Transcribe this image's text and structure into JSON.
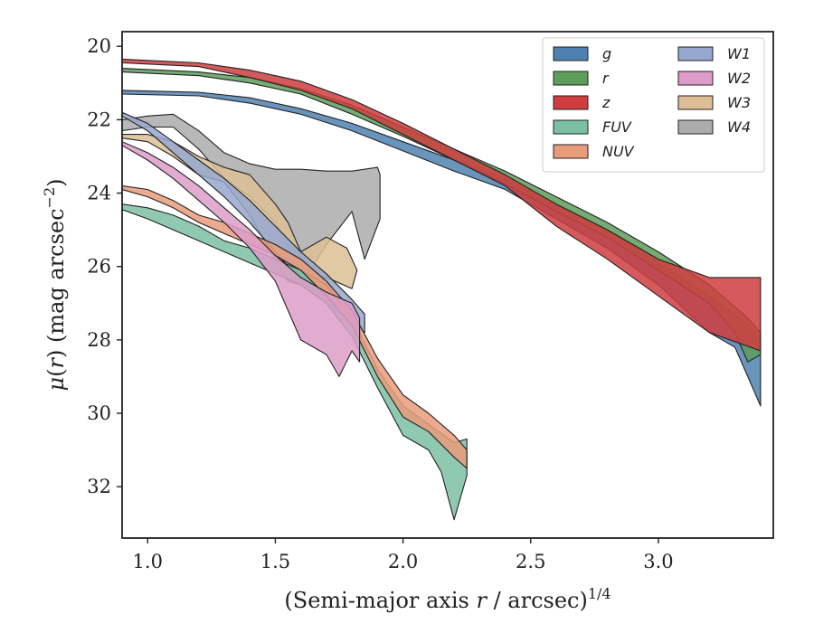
{
  "chart_data": {
    "type": "area",
    "title": "",
    "xlabel_main": "(Semi-major axis ",
    "xlabel_var": "r",
    "xlabel_tail": " / arcsec)",
    "xlabel_sup": "1/4",
    "ylabel_mu": "μ",
    "ylabel_open": "(",
    "ylabel_var": "r",
    "ylabel_tail": ") (mag arcsec",
    "ylabel_sup": "−2",
    "ylabel_close": ")",
    "xlim": [
      0.9,
      3.45
    ],
    "ylim": [
      33.4,
      19.6
    ],
    "y_inverted": true,
    "x_ticks": [
      1.0,
      1.5,
      2.0,
      2.5,
      3.0
    ],
    "x_tick_labels": [
      "1.0",
      "1.5",
      "2.0",
      "2.5",
      "3.0"
    ],
    "y_ticks": [
      20,
      22,
      24,
      26,
      28,
      30,
      32
    ],
    "y_tick_labels": [
      "20",
      "22",
      "24",
      "26",
      "28",
      "30",
      "32"
    ],
    "grid": false,
    "legend_position": "top-right",
    "legend_columns": 2,
    "series": [
      {
        "name": "W4",
        "color": "#acacac",
        "upper": [
          [
            0.9,
            22.0
          ],
          [
            1.0,
            21.9
          ],
          [
            1.1,
            21.85
          ],
          [
            1.2,
            22.3
          ],
          [
            1.3,
            22.9
          ],
          [
            1.4,
            23.2
          ],
          [
            1.5,
            23.35
          ],
          [
            1.6,
            23.35
          ],
          [
            1.7,
            23.4
          ],
          [
            1.8,
            23.4
          ],
          [
            1.9,
            23.3
          ],
          [
            1.91,
            23.5
          ]
        ],
        "lower": [
          [
            0.9,
            22.3
          ],
          [
            1.0,
            22.2
          ],
          [
            1.1,
            22.2
          ],
          [
            1.2,
            22.8
          ],
          [
            1.3,
            23.6
          ],
          [
            1.4,
            24.1
          ],
          [
            1.5,
            24.8
          ],
          [
            1.55,
            25.5
          ],
          [
            1.6,
            26.5
          ],
          [
            1.7,
            25.4
          ],
          [
            1.8,
            24.5
          ],
          [
            1.85,
            25.8
          ],
          [
            1.91,
            24.7
          ]
        ]
      },
      {
        "name": "W3",
        "color": "#dcbf97",
        "upper": [
          [
            0.9,
            22.4
          ],
          [
            1.0,
            22.4
          ],
          [
            1.1,
            22.6
          ],
          [
            1.2,
            23.0
          ],
          [
            1.3,
            23.3
          ],
          [
            1.4,
            23.5
          ],
          [
            1.5,
            24.3
          ],
          [
            1.55,
            24.8
          ],
          [
            1.6,
            25.6
          ],
          [
            1.7,
            25.2
          ],
          [
            1.78,
            25.5
          ],
          [
            1.82,
            26.1
          ]
        ],
        "lower": [
          [
            0.9,
            22.5
          ],
          [
            1.0,
            22.6
          ],
          [
            1.1,
            23.0
          ],
          [
            1.2,
            23.5
          ],
          [
            1.3,
            23.7
          ],
          [
            1.4,
            24.6
          ],
          [
            1.5,
            25.8
          ],
          [
            1.55,
            26.4
          ],
          [
            1.6,
            26.5
          ],
          [
            1.7,
            26.3
          ],
          [
            1.8,
            26.6
          ]
        ]
      },
      {
        "name": "W1",
        "color": "#97a8cf",
        "upper": [
          [
            0.9,
            21.8
          ],
          [
            1.0,
            22.1
          ],
          [
            1.1,
            22.6
          ],
          [
            1.2,
            23.1
          ],
          [
            1.3,
            23.6
          ],
          [
            1.4,
            24.2
          ],
          [
            1.5,
            24.9
          ],
          [
            1.6,
            25.6
          ],
          [
            1.7,
            26.2
          ],
          [
            1.8,
            26.9
          ],
          [
            1.85,
            27.3
          ]
        ],
        "lower": [
          [
            0.9,
            21.9
          ],
          [
            1.0,
            22.3
          ],
          [
            1.1,
            22.9
          ],
          [
            1.2,
            23.5
          ],
          [
            1.3,
            24.1
          ],
          [
            1.4,
            24.8
          ],
          [
            1.5,
            25.6
          ],
          [
            1.6,
            26.4
          ],
          [
            1.7,
            27.0
          ],
          [
            1.8,
            27.5
          ],
          [
            1.85,
            27.8
          ]
        ]
      },
      {
        "name": "FUV",
        "color": "#7bbfa5",
        "upper": [
          [
            0.9,
            24.3
          ],
          [
            1.0,
            24.4
          ],
          [
            1.1,
            24.6
          ],
          [
            1.2,
            24.9
          ],
          [
            1.3,
            25.3
          ],
          [
            1.4,
            25.5
          ],
          [
            1.5,
            25.8
          ],
          [
            1.6,
            26.1
          ],
          [
            1.7,
            26.5
          ],
          [
            1.8,
            27.4
          ],
          [
            1.9,
            28.8
          ],
          [
            2.0,
            29.8
          ],
          [
            2.1,
            30.3
          ],
          [
            2.2,
            30.8
          ],
          [
            2.25,
            30.7
          ]
        ],
        "lower": [
          [
            0.9,
            24.45
          ],
          [
            1.0,
            24.7
          ],
          [
            1.1,
            25.0
          ],
          [
            1.2,
            25.3
          ],
          [
            1.3,
            25.6
          ],
          [
            1.4,
            25.9
          ],
          [
            1.5,
            26.2
          ],
          [
            1.6,
            26.5
          ],
          [
            1.7,
            27.0
          ],
          [
            1.8,
            27.9
          ],
          [
            1.9,
            29.3
          ],
          [
            2.0,
            30.6
          ],
          [
            2.1,
            31.0
          ],
          [
            2.15,
            31.6
          ],
          [
            2.2,
            32.9
          ],
          [
            2.25,
            31.7
          ]
        ]
      },
      {
        "name": "NUV",
        "color": "#e99c7a",
        "upper": [
          [
            0.9,
            23.8
          ],
          [
            1.0,
            23.9
          ],
          [
            1.1,
            24.2
          ],
          [
            1.2,
            24.6
          ],
          [
            1.3,
            24.8
          ],
          [
            1.4,
            25.1
          ],
          [
            1.5,
            25.4
          ],
          [
            1.6,
            25.8
          ],
          [
            1.7,
            26.4
          ],
          [
            1.8,
            27.2
          ],
          [
            1.9,
            28.5
          ],
          [
            2.0,
            29.5
          ],
          [
            2.1,
            30.0
          ],
          [
            2.2,
            30.6
          ],
          [
            2.25,
            31.0
          ]
        ],
        "lower": [
          [
            0.9,
            23.9
          ],
          [
            1.0,
            24.1
          ],
          [
            1.1,
            24.4
          ],
          [
            1.2,
            24.8
          ],
          [
            1.3,
            25.1
          ],
          [
            1.4,
            25.4
          ],
          [
            1.5,
            25.7
          ],
          [
            1.6,
            26.1
          ],
          [
            1.7,
            26.8
          ],
          [
            1.8,
            27.6
          ],
          [
            1.9,
            29.0
          ],
          [
            2.0,
            30.1
          ],
          [
            2.1,
            30.5
          ],
          [
            2.2,
            31.2
          ],
          [
            2.25,
            31.5
          ]
        ]
      },
      {
        "name": "W2",
        "color": "#dd9dc8",
        "upper": [
          [
            0.9,
            22.6
          ],
          [
            1.0,
            22.9
          ],
          [
            1.1,
            23.3
          ],
          [
            1.2,
            23.8
          ],
          [
            1.3,
            24.4
          ],
          [
            1.4,
            25.0
          ],
          [
            1.5,
            25.7
          ],
          [
            1.6,
            26.3
          ],
          [
            1.7,
            26.7
          ],
          [
            1.8,
            27.0
          ],
          [
            1.83,
            27.4
          ]
        ],
        "lower": [
          [
            0.9,
            22.7
          ],
          [
            1.0,
            23.1
          ],
          [
            1.1,
            23.6
          ],
          [
            1.2,
            24.2
          ],
          [
            1.3,
            24.8
          ],
          [
            1.4,
            25.5
          ],
          [
            1.5,
            26.4
          ],
          [
            1.55,
            27.2
          ],
          [
            1.6,
            28.0
          ],
          [
            1.7,
            28.4
          ],
          [
            1.75,
            29.0
          ],
          [
            1.8,
            28.3
          ],
          [
            1.83,
            28.6
          ]
        ]
      },
      {
        "name": "g",
        "color": "#4f81b0",
        "upper": [
          [
            0.9,
            21.2
          ],
          [
            1.2,
            21.25
          ],
          [
            1.4,
            21.4
          ],
          [
            1.6,
            21.7
          ],
          [
            1.8,
            22.1
          ],
          [
            2.0,
            22.6
          ],
          [
            2.2,
            23.1
          ],
          [
            2.4,
            23.6
          ],
          [
            2.6,
            24.3
          ],
          [
            2.8,
            25.0
          ],
          [
            3.0,
            25.9
          ],
          [
            3.2,
            26.8
          ],
          [
            3.35,
            27.6
          ],
          [
            3.4,
            28.0
          ]
        ],
        "lower": [
          [
            0.9,
            21.3
          ],
          [
            1.2,
            21.35
          ],
          [
            1.4,
            21.55
          ],
          [
            1.6,
            21.85
          ],
          [
            1.8,
            22.3
          ],
          [
            2.0,
            22.85
          ],
          [
            2.2,
            23.4
          ],
          [
            2.4,
            23.9
          ],
          [
            2.6,
            24.7
          ],
          [
            2.8,
            25.5
          ],
          [
            3.0,
            26.5
          ],
          [
            3.2,
            27.8
          ],
          [
            3.3,
            28.2
          ],
          [
            3.35,
            29.0
          ],
          [
            3.4,
            29.8
          ]
        ]
      },
      {
        "name": "r",
        "color": "#5d9e5b",
        "upper": [
          [
            0.9,
            20.6
          ],
          [
            1.2,
            20.7
          ],
          [
            1.4,
            20.85
          ],
          [
            1.6,
            21.15
          ],
          [
            1.8,
            21.6
          ],
          [
            2.0,
            22.2
          ],
          [
            2.2,
            22.8
          ],
          [
            2.4,
            23.4
          ],
          [
            2.6,
            24.1
          ],
          [
            2.8,
            24.8
          ],
          [
            3.0,
            25.6
          ],
          [
            3.2,
            26.5
          ],
          [
            3.35,
            27.4
          ],
          [
            3.4,
            27.8
          ]
        ],
        "lower": [
          [
            0.9,
            20.7
          ],
          [
            1.2,
            20.8
          ],
          [
            1.4,
            21.0
          ],
          [
            1.6,
            21.3
          ],
          [
            1.8,
            21.85
          ],
          [
            2.0,
            22.45
          ],
          [
            2.2,
            23.1
          ],
          [
            2.4,
            23.75
          ],
          [
            2.6,
            24.5
          ],
          [
            2.8,
            25.2
          ],
          [
            3.0,
            26.1
          ],
          [
            3.2,
            27.0
          ],
          [
            3.3,
            27.8
          ],
          [
            3.35,
            28.6
          ],
          [
            3.4,
            28.4
          ]
        ]
      },
      {
        "name": "z",
        "color": "#cf3d3f",
        "upper": [
          [
            0.9,
            20.35
          ],
          [
            1.2,
            20.45
          ],
          [
            1.4,
            20.65
          ],
          [
            1.6,
            20.95
          ],
          [
            1.8,
            21.45
          ],
          [
            2.0,
            22.1
          ],
          [
            2.2,
            22.8
          ],
          [
            2.4,
            23.5
          ],
          [
            2.6,
            24.3
          ],
          [
            2.8,
            25.0
          ],
          [
            3.0,
            25.8
          ],
          [
            3.2,
            26.3
          ],
          [
            3.4,
            26.3
          ]
        ],
        "lower": [
          [
            0.9,
            20.45
          ],
          [
            1.2,
            20.55
          ],
          [
            1.4,
            20.85
          ],
          [
            1.6,
            21.2
          ],
          [
            1.8,
            21.7
          ],
          [
            2.0,
            22.4
          ],
          [
            2.2,
            23.1
          ],
          [
            2.4,
            23.8
          ],
          [
            2.6,
            24.9
          ],
          [
            2.8,
            25.8
          ],
          [
            3.0,
            26.8
          ],
          [
            3.2,
            27.8
          ],
          [
            3.4,
            28.3
          ]
        ]
      }
    ],
    "legend": [
      {
        "label": "g",
        "color": "#4f81b0"
      },
      {
        "label": "r",
        "color": "#5d9e5b"
      },
      {
        "label": "z",
        "color": "#cf3d3f"
      },
      {
        "label": "FUV",
        "color": "#7bbfa5"
      },
      {
        "label": "NUV",
        "color": "#e99c7a"
      },
      {
        "label": "W1",
        "color": "#97a8cf"
      },
      {
        "label": "W2",
        "color": "#dd9dc8"
      },
      {
        "label": "W3",
        "color": "#dcbf97"
      },
      {
        "label": "W4",
        "color": "#acacac"
      }
    ]
  }
}
